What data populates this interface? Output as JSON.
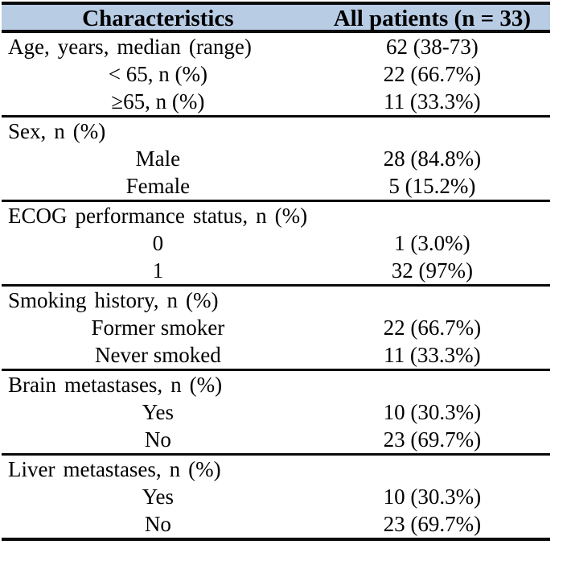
{
  "colors": {
    "header_bg": "#b8cce4",
    "border": "#0a0a0a",
    "text": "#000000"
  },
  "table": {
    "header": {
      "characteristics": "Characteristics",
      "all_patients": "All patients (n = 33)"
    },
    "sections": [
      {
        "name": "age",
        "rows": [
          {
            "label": "Age, years, median (range)",
            "value": "62 (38-73)",
            "type": "category"
          },
          {
            "label": "< 65, n (%)",
            "value": "22 (66.7%)",
            "type": "sub"
          },
          {
            "label": "≥65, n (%)",
            "value": "11 (33.3%)",
            "type": "sub"
          }
        ]
      },
      {
        "name": "sex",
        "rows": [
          {
            "label": "Sex, n (%)",
            "value": "",
            "type": "category"
          },
          {
            "label": "Male",
            "value": "28 (84.8%)",
            "type": "sub"
          },
          {
            "label": "Female",
            "value": "5 (15.2%)",
            "type": "sub"
          }
        ]
      },
      {
        "name": "ecog",
        "rows": [
          {
            "label": "ECOG performance status, n (%)",
            "value": "",
            "type": "category"
          },
          {
            "label": "0",
            "value": "1 (3.0%)",
            "type": "sub"
          },
          {
            "label": "1",
            "value": "32 (97%)",
            "type": "sub"
          }
        ]
      },
      {
        "name": "smoking",
        "rows": [
          {
            "label": "Smoking history, n (%)",
            "value": "",
            "type": "category"
          },
          {
            "label": "Former smoker",
            "value": "22 (66.7%)",
            "type": "sub"
          },
          {
            "label": "Never smoked",
            "value": "11 (33.3%)",
            "type": "sub"
          }
        ]
      },
      {
        "name": "brain-metastases",
        "rows": [
          {
            "label": "Brain metastases, n (%)",
            "value": "",
            "type": "category"
          },
          {
            "label": "Yes",
            "value": "10 (30.3%)",
            "type": "sub"
          },
          {
            "label": "No",
            "value": "23 (69.7%)",
            "type": "sub"
          }
        ]
      },
      {
        "name": "liver-metastases",
        "rows": [
          {
            "label": "Liver metastases, n (%)",
            "value": "",
            "type": "category"
          },
          {
            "label": "Yes",
            "value": "10 (30.3%)",
            "type": "sub"
          },
          {
            "label": "No",
            "value": "23 (69.7%)",
            "type": "sub"
          }
        ]
      }
    ]
  }
}
